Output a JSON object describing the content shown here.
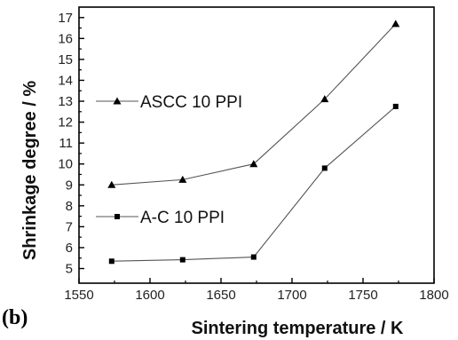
{
  "chart_data": {
    "type": "line",
    "panel_label": "(b)",
    "xlabel": "Sintering temperature / K",
    "ylabel": "Shrinkage degree / %",
    "xlim": [
      1550,
      1800
    ],
    "ylim": [
      4.3,
      17.5
    ],
    "x_ticks": [
      1550,
      1600,
      1650,
      1700,
      1750,
      1800
    ],
    "y_ticks": [
      5,
      6,
      7,
      8,
      9,
      10,
      11,
      12,
      13,
      14,
      15,
      16,
      17
    ],
    "grid": false,
    "legend": "left",
    "series": [
      {
        "name": "ASCC 10 PPI",
        "marker": "triangle",
        "x": [
          1573,
          1623,
          1673,
          1723,
          1773
        ],
        "y": [
          9.0,
          9.25,
          10.0,
          13.1,
          16.7
        ]
      },
      {
        "name": "A-C 10 PPI",
        "marker": "square",
        "x": [
          1573,
          1623,
          1673,
          1723,
          1773
        ],
        "y": [
          5.35,
          5.42,
          5.55,
          9.8,
          12.75
        ]
      }
    ],
    "colors": {
      "line": "#555555",
      "marker": "#000000",
      "axis": "#000000"
    }
  }
}
